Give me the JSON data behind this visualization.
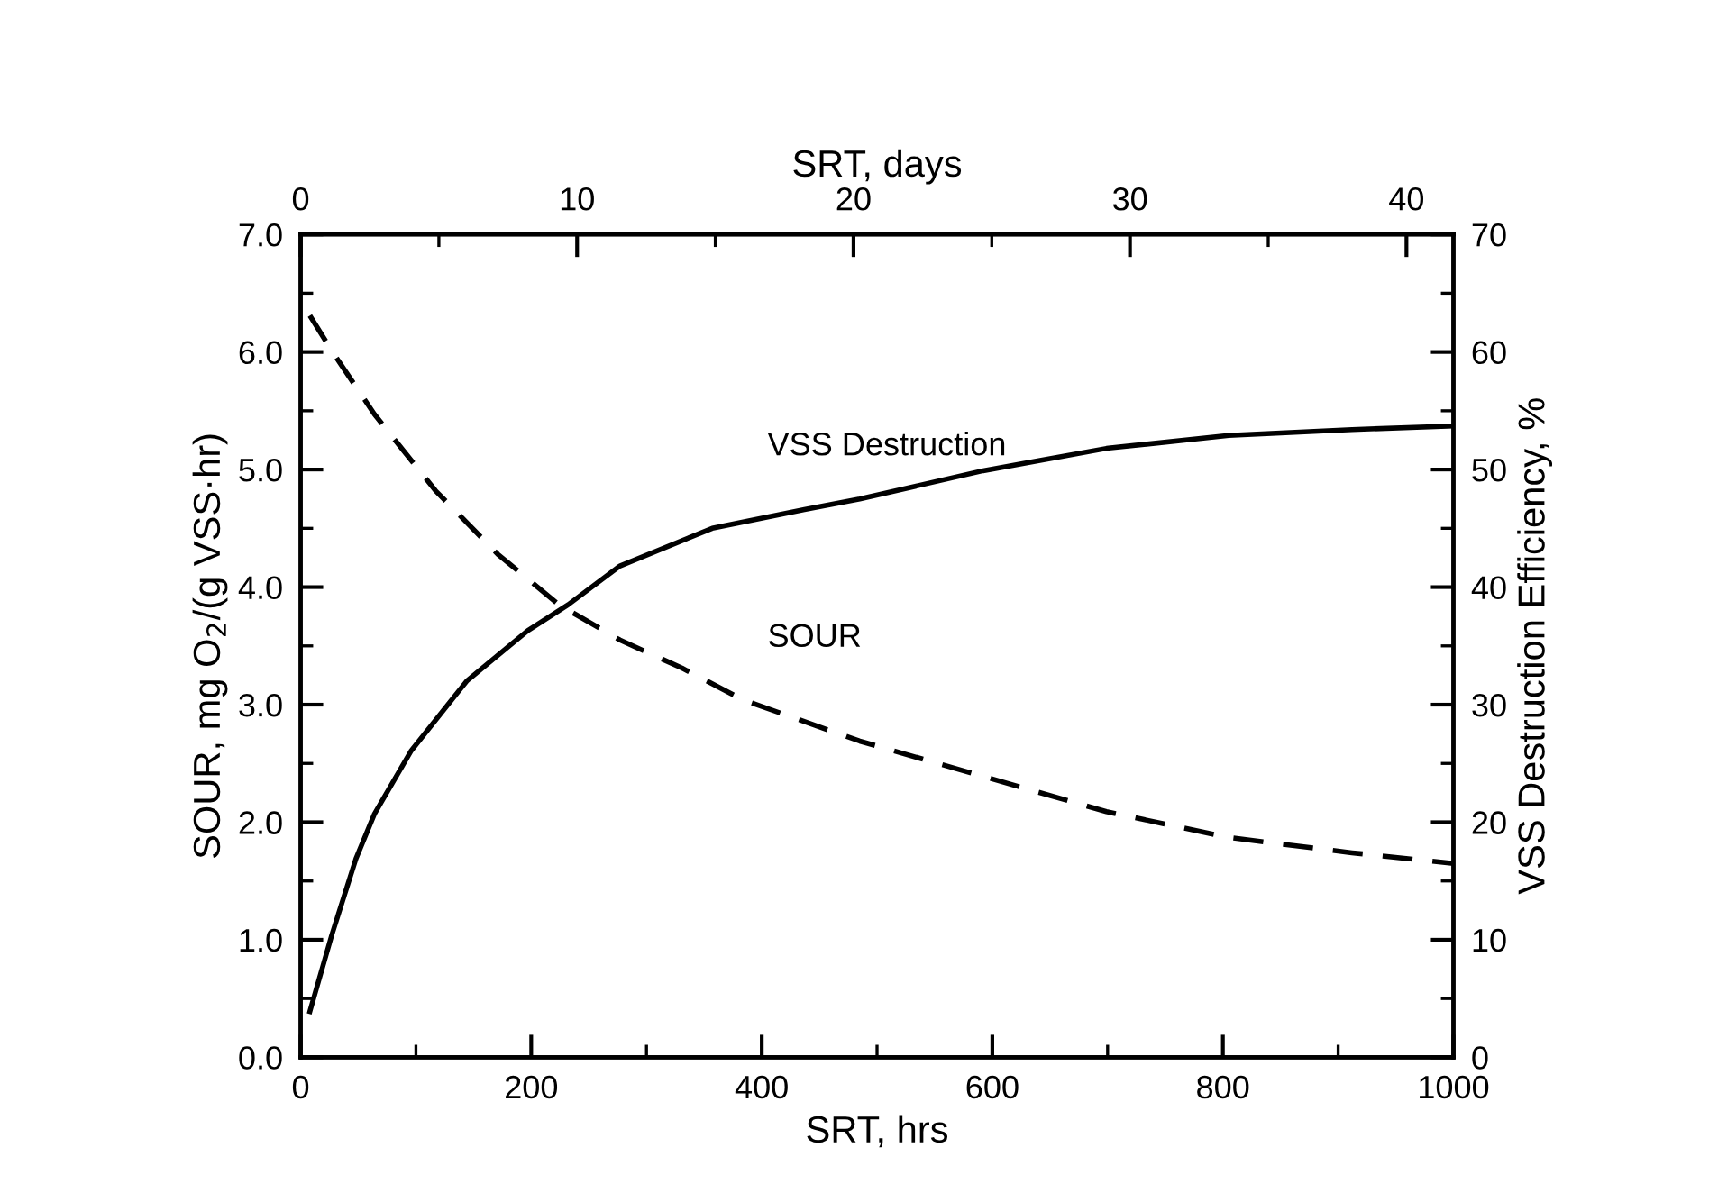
{
  "chart_data": {
    "type": "line",
    "xlabel": "SRT, hrs",
    "ylabel": "SOUR, mg O$_{2}$/(g VSS·hr)",
    "y2label": "VSS Destruction Efficiency, %",
    "x2label": "SRT, days",
    "xlim": [
      0,
      1000
    ],
    "xticks": [
      0,
      {
        "value": 100,
        "label": null
      },
      200,
      {
        "value": 300,
        "label": null
      },
      400,
      {
        "value": 500,
        "label": null
      },
      600,
      {
        "value": 700,
        "label": null
      },
      800,
      {
        "value": 900,
        "label": null
      },
      1000
    ],
    "x2lim": [
      0,
      41.7
    ],
    "x2ticks": [
      0,
      {
        "value": 5,
        "label": null
      },
      10,
      {
        "value": 15,
        "label": null
      },
      20,
      {
        "value": 25,
        "label": null
      },
      30,
      {
        "value": 35,
        "label": null
      },
      40
    ],
    "ylim": [
      0,
      7
    ],
    "yticks": [
      {
        "value": 0,
        "label": "0.0"
      },
      {
        "value": 0.5,
        "label": null
      },
      {
        "value": 1,
        "label": "1.0"
      },
      {
        "value": 1.5,
        "label": null
      },
      {
        "value": 2,
        "label": "2.0"
      },
      {
        "value": 2.5,
        "label": null
      },
      {
        "value": 3,
        "label": "3.0"
      },
      {
        "value": 3.5,
        "label": null
      },
      {
        "value": 4,
        "label": "4.0"
      },
      {
        "value": 4.5,
        "label": null
      },
      {
        "value": 5,
        "label": "5.0"
      },
      {
        "value": 5.5,
        "label": null
      },
      {
        "value": 6,
        "label": "6.0"
      },
      {
        "value": 6.5,
        "label": null
      },
      {
        "value": 7,
        "label": "7.0"
      }
    ],
    "y2lim": [
      0,
      70
    ],
    "y2ticks": [
      0,
      {
        "value": 5,
        "label": null
      },
      10,
      {
        "value": 15,
        "label": null
      },
      20,
      {
        "value": 25,
        "label": null
      },
      30,
      {
        "value": 35,
        "label": null
      },
      40,
      {
        "value": 45,
        "label": null
      },
      50,
      {
        "value": 55,
        "label": null
      },
      60,
      {
        "value": 65,
        "label": null
      },
      70
    ],
    "grid": false,
    "legend": false,
    "marker": "none",
    "series": [
      {
        "name": "SOUR",
        "color": "#000000",
        "line_style": "dashed",
        "x": [
          8,
          27,
          64,
          117,
          171,
          224,
          277,
          331,
          384,
          485,
          592,
          699,
          805,
          912,
          1000
        ],
        "values": [
          6.31,
          6.01,
          5.47,
          4.82,
          4.28,
          3.85,
          3.55,
          3.31,
          3.04,
          2.69,
          2.39,
          2.09,
          1.87,
          1.74,
          1.65
        ]
      },
      {
        "name": "VSS Destruction",
        "color": "#000000",
        "line_style": "solid",
        "axis": "y2",
        "x": [
          8,
          27,
          48,
          64,
          96,
          144,
          197,
          232,
          277,
          357,
          437,
          485,
          592,
          699,
          805,
          912,
          1000
        ],
        "values": [
          3.9,
          10.4,
          16.9,
          20.7,
          26.1,
          32.0,
          36.3,
          38.5,
          41.8,
          45.0,
          46.6,
          47.5,
          49.9,
          51.8,
          52.9,
          53.4,
          53.7
        ]
      }
    ]
  }
}
